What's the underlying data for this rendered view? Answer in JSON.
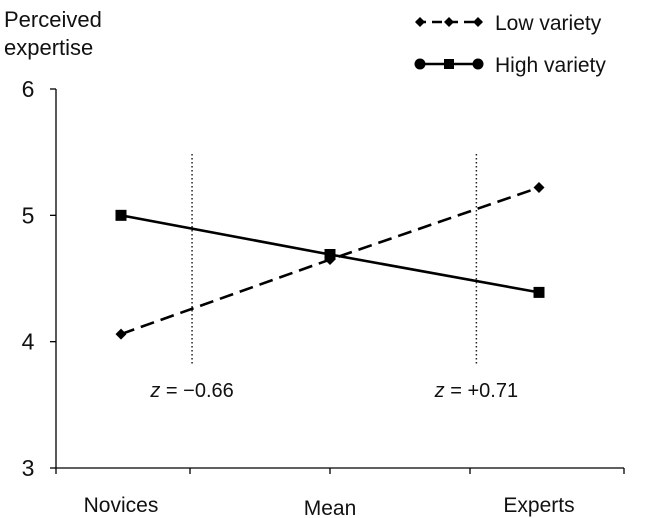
{
  "chart_data": {
    "type": "line",
    "title": "",
    "xlabel": "",
    "ylabel": "Perceived expertise",
    "ylabel_lines": [
      "Perceived",
      "expertise"
    ],
    "categories": [
      "Novices",
      "Mean",
      "Experts"
    ],
    "ylim": [
      3,
      6
    ],
    "yticks": [
      3,
      4,
      5,
      6
    ],
    "ytick_labels": [
      "3",
      "4",
      "5",
      "6"
    ],
    "grid": false,
    "legend_position": "top-right",
    "series": [
      {
        "name": "Low variety",
        "values": [
          4.06,
          4.65,
          5.22
        ],
        "line_style": "dashed",
        "marker": "diamond",
        "color": "#000000"
      },
      {
        "name": "High variety",
        "values": [
          5.0,
          4.69,
          4.39
        ],
        "line_style": "solid",
        "marker": "square",
        "color": "#000000"
      }
    ],
    "reference_lines": [
      {
        "x": -0.66,
        "label": "z = −0.66",
        "label_var": "z",
        "label_value": " = −0.66"
      },
      {
        "x": 0.71,
        "label": "z = +0.71",
        "label_var": "z",
        "label_value": " = +0.71"
      }
    ],
    "x_positions": [
      -1,
      0,
      1
    ]
  }
}
